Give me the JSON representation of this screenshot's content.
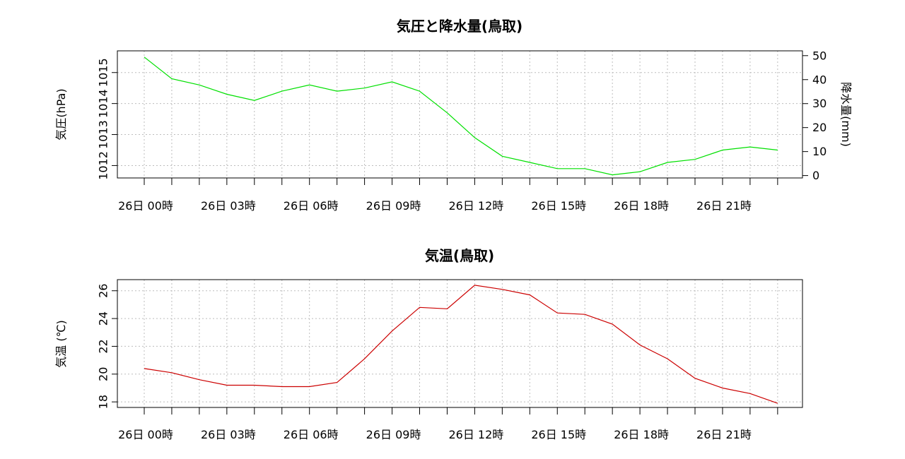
{
  "chart_data": [
    {
      "type": "line",
      "title": "気圧と降水量(鳥取)",
      "ylabel": "気圧(hPa)",
      "y2label": "降水量(mm)",
      "ylim": [
        1011.6,
        1015.7
      ],
      "yticks": [
        1012,
        1013,
        1014,
        1015
      ],
      "y2lim": [
        -1,
        52
      ],
      "y2ticks": [
        0,
        10,
        20,
        30,
        40,
        50
      ],
      "xticks": [
        "26日 00時",
        "26日 03時",
        "26日 06時",
        "26日 09時",
        "26日 12時",
        "26日 15時",
        "26日 18時",
        "26日 21時"
      ],
      "grid": true,
      "series": [
        {
          "color": "#00e000",
          "values": [
            1015.5,
            1014.8,
            1014.6,
            1014.3,
            1014.1,
            1014.4,
            1014.6,
            1014.4,
            1014.5,
            1014.7,
            1014.4,
            1013.7,
            1012.9,
            1012.3,
            1012.1,
            1011.9,
            1011.9,
            1011.7,
            1011.8,
            1012.1,
            1012.2,
            1012.5,
            1012.6,
            1012.5
          ]
        }
      ]
    },
    {
      "type": "line",
      "title": "気温(鳥取)",
      "ylabel": "気温 (℃)",
      "ylim": [
        17.6,
        26.8
      ],
      "yticks": [
        18,
        20,
        22,
        24,
        26
      ],
      "xticks": [
        "26日 00時",
        "26日 03時",
        "26日 06時",
        "26日 09時",
        "26日 12時",
        "26日 15時",
        "26日 18時",
        "26日 21時"
      ],
      "grid": true,
      "series": [
        {
          "color": "#cc0000",
          "values": [
            20.4,
            20.1,
            19.6,
            19.2,
            19.2,
            19.1,
            19.1,
            19.4,
            21.1,
            23.1,
            24.8,
            24.7,
            26.4,
            26.1,
            25.7,
            24.4,
            24.3,
            23.6,
            22.1,
            21.1,
            19.7,
            19.0,
            18.6,
            17.9
          ]
        }
      ]
    }
  ]
}
